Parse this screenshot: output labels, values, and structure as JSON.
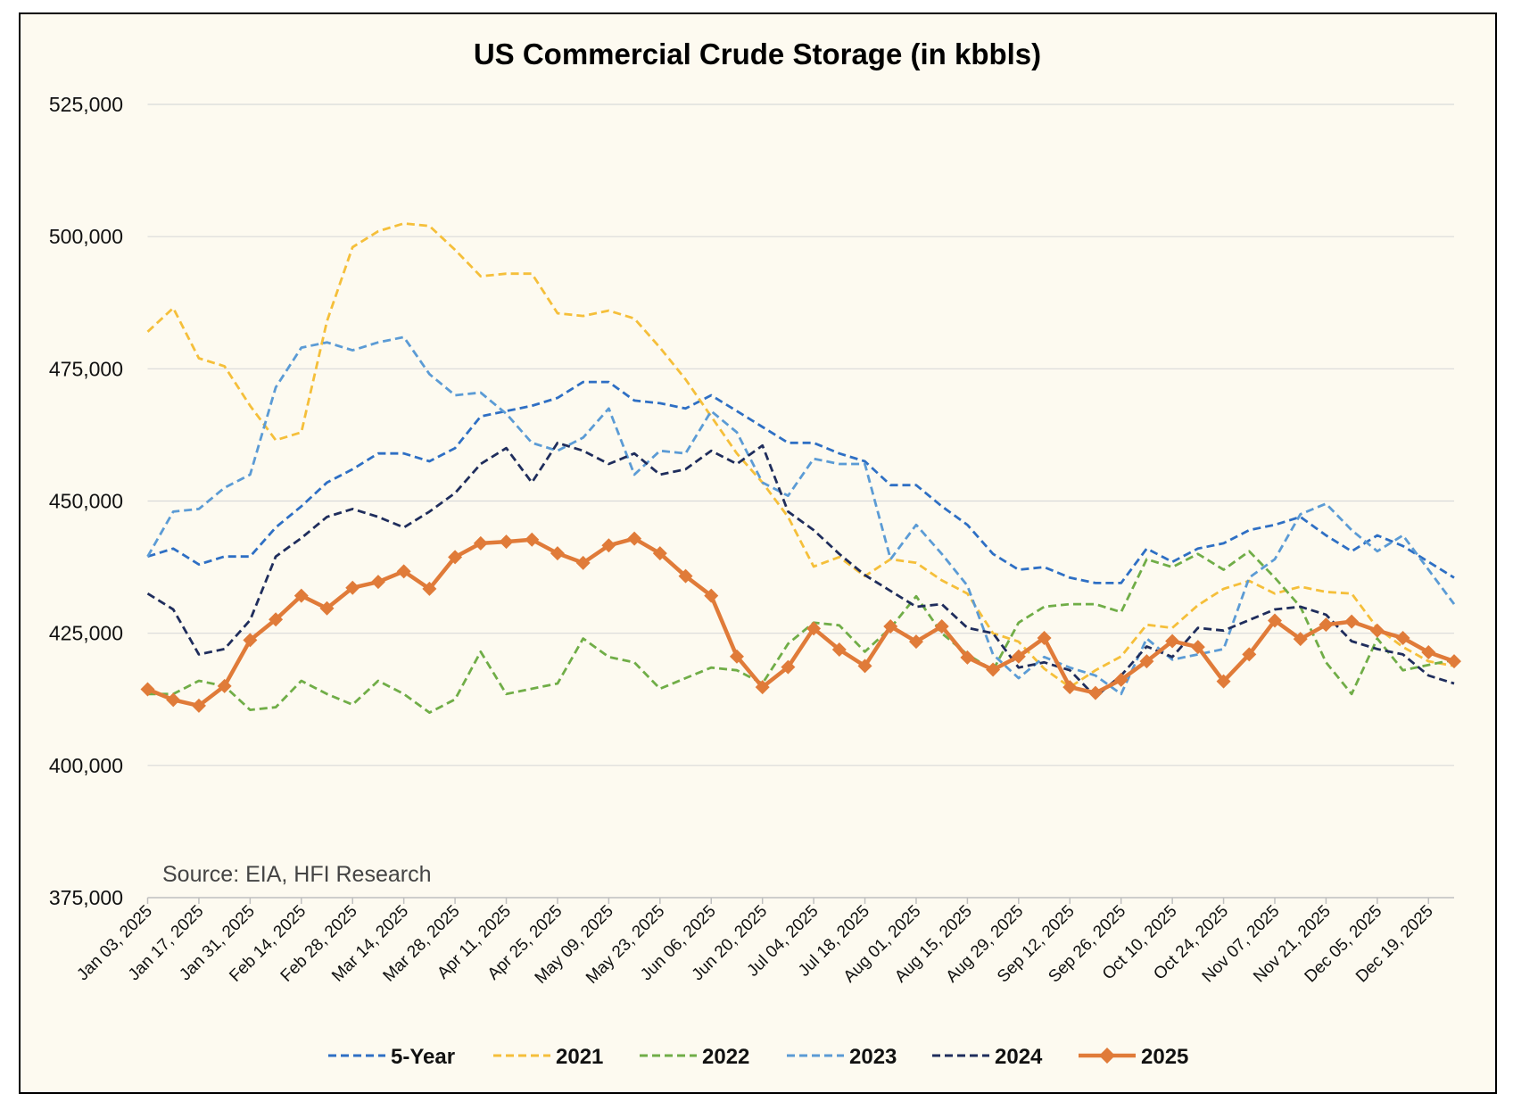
{
  "chart_data": {
    "type": "line",
    "title": "US Commercial Crude Storage (in kbbls)",
    "xlabel": "",
    "ylabel": "",
    "ylim": [
      375000,
      525000
    ],
    "y_ticks": [
      375000,
      400000,
      425000,
      450000,
      475000,
      500000,
      525000
    ],
    "y_tick_labels": [
      "375,000",
      "400,000",
      "425,000",
      "450,000",
      "475,000",
      "500,000",
      "525,000"
    ],
    "x_frequency": "weekly (52 weeks starting Jan 03, 2025)",
    "x_tick_labels": [
      "Jan 03, 2025",
      "Jan 17, 2025",
      "Jan 31, 2025",
      "Feb 14, 2025",
      "Feb 28, 2025",
      "Mar 14, 2025",
      "Mar 28, 2025",
      "Apr 11, 2025",
      "Apr 25, 2025",
      "May 09, 2025",
      "May 23, 2025",
      "Jun 06, 2025",
      "Jun 20, 2025",
      "Jul 04, 2025",
      "Jul 18, 2025",
      "Aug 01, 2025",
      "Aug 15, 2025",
      "Aug 29, 2025",
      "Sep 12, 2025",
      "Sep 26, 2025",
      "Oct 10, 2025",
      "Oct 24, 2025",
      "Nov 07, 2025",
      "Nov 21, 2025",
      "Dec 05, 2025",
      "Dec 19, 2025"
    ],
    "grid": true,
    "legend_position": "bottom",
    "annotation": "Source: EIA, HFI Research",
    "series": [
      {
        "name": "5-Year",
        "color": "#2E6FC4",
        "style": "dashed",
        "values": [
          439500,
          441000,
          438000,
          439500,
          439500,
          445000,
          449000,
          453500,
          456000,
          459000,
          459000,
          457500,
          460000,
          466000,
          467000,
          468000,
          469500,
          472500,
          472500,
          469000,
          468500,
          467500,
          470000,
          467000,
          464000,
          461000,
          461000,
          459000,
          457500,
          453000,
          453000,
          449000,
          445500,
          440000,
          437000,
          437500,
          435500,
          434500,
          434500,
          441000,
          438500,
          441000,
          442000,
          444500,
          445500,
          447000,
          443500,
          440500,
          443500,
          441500,
          438500,
          435500
        ]
      },
      {
        "name": "2021",
        "color": "#F5BF3A",
        "style": "dashed",
        "values": [
          482000,
          486500,
          477000,
          475500,
          468000,
          461500,
          463000,
          484000,
          498000,
          501000,
          502500,
          502000,
          497500,
          492500,
          493000,
          493000,
          485500,
          485000,
          486000,
          484500,
          479000,
          473000,
          466000,
          459000,
          453500,
          447000,
          437600,
          439400,
          435800,
          439000,
          438300,
          435000,
          432500,
          425000,
          423400,
          418300,
          414800,
          418000,
          420600,
          426600,
          426000,
          430300,
          433400,
          434900,
          432500,
          433800,
          432800,
          432500,
          426000,
          422400,
          419700,
          418800
        ]
      },
      {
        "name": "2022",
        "color": "#70AD47",
        "style": "dashed",
        "values": [
          413500,
          413500,
          416000,
          415000,
          410500,
          411000,
          416000,
          413500,
          411500,
          416000,
          413500,
          410000,
          412500,
          421500,
          413500,
          414500,
          415500,
          424000,
          420500,
          419500,
          414500,
          416500,
          418500,
          418000,
          415500,
          423000,
          427000,
          426500,
          421500,
          426000,
          432000,
          425000,
          421000,
          418000,
          427000,
          430000,
          430500,
          430500,
          429000,
          439000,
          437500,
          440000,
          437000,
          440500,
          435500,
          430000,
          419500,
          413500,
          424000,
          418000,
          419000,
          420000
        ]
      },
      {
        "name": "2023",
        "color": "#5B9BD5",
        "style": "dashed",
        "values": [
          439500,
          448000,
          448500,
          452500,
          455000,
          471500,
          479000,
          480000,
          478500,
          480000,
          481000,
          474000,
          470000,
          470500,
          466500,
          461000,
          459500,
          462000,
          467500,
          455000,
          459500,
          459000,
          467000,
          463000,
          453500,
          451000,
          458000,
          457000,
          457000,
          439000,
          445500,
          440000,
          434000,
          421000,
          416500,
          420500,
          418500,
          417000,
          413500,
          424000,
          420000,
          421000,
          422000,
          435500,
          439000,
          447500,
          449500,
          444500,
          440500,
          443500,
          437000,
          430500
        ]
      },
      {
        "name": "2024",
        "color": "#1F2D5C",
        "style": "dashed",
        "values": [
          432500,
          429500,
          421000,
          422000,
          427500,
          439500,
          443000,
          447000,
          448500,
          447000,
          445000,
          448000,
          451500,
          457000,
          460000,
          453500,
          461000,
          459500,
          457000,
          459000,
          455000,
          456000,
          459500,
          457000,
          460500,
          448000,
          444500,
          440000,
          436000,
          433000,
          430000,
          430500,
          426000,
          425000,
          418500,
          419500,
          418000,
          413000,
          417000,
          422500,
          420500,
          426000,
          425500,
          427500,
          429500,
          430000,
          428500,
          423500,
          422000,
          421000,
          417000,
          415500
        ]
      },
      {
        "name": "2025",
        "color": "#E07B39",
        "style": "solid-diamond",
        "values": [
          414400,
          412400,
          411300,
          415000,
          423700,
          427600,
          432100,
          429700,
          433600,
          434700,
          436700,
          433400,
          439400,
          442000,
          442300,
          442700,
          440100,
          438300,
          441600,
          442900,
          440100,
          435800,
          432100,
          420600,
          414800,
          418600,
          425900,
          421900,
          418800,
          426300,
          423400,
          426300,
          420400,
          418100,
          420600,
          424100,
          414800,
          413700,
          416200,
          419700,
          423500,
          422400,
          415900,
          421000,
          427400,
          423900,
          426600,
          427200,
          425500,
          424100,
          421400,
          419700
        ]
      }
    ]
  }
}
